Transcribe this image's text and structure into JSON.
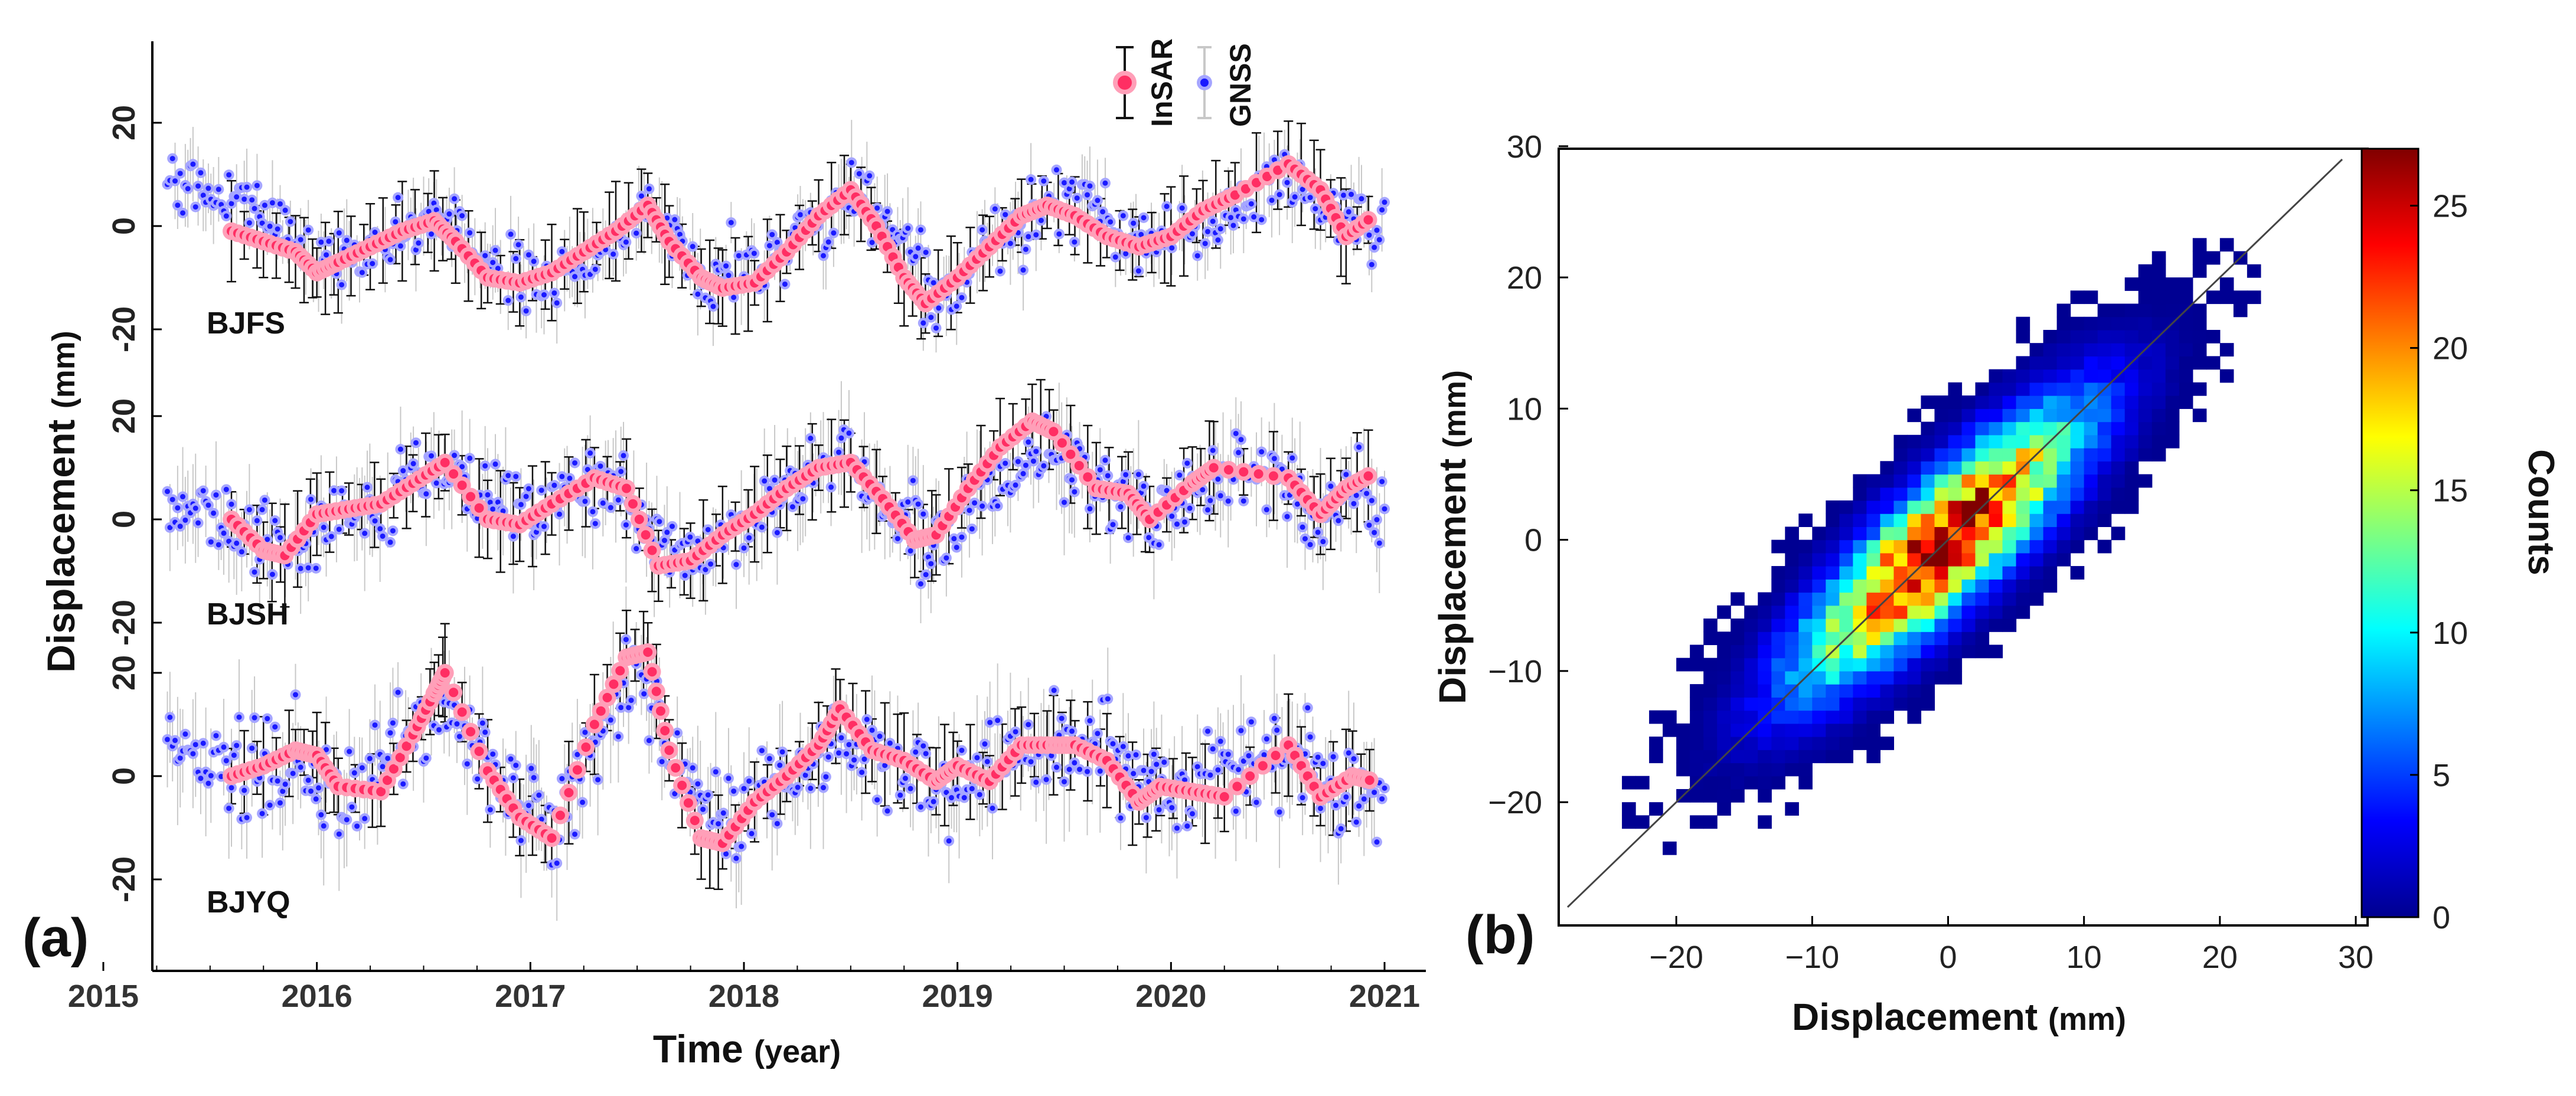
{
  "colors": {
    "insar": "#ff2e63",
    "insar_halo": "#ff9fb8",
    "gnss": "#1a1aff",
    "gnss_halo": "#a6a6ff",
    "gnss_err": "#c8c8c8",
    "insar_err": "#111111",
    "axis": "#000000",
    "one_to_one": "#444444"
  },
  "chart_data": [
    {
      "panel": "(a)",
      "type": "scatter",
      "xlabel": "Time (year)",
      "xlabel_main": "Time",
      "xlabel_unit": "(year)",
      "ylabel": "Displacement (mm)",
      "ylabel_main": "Displacement",
      "ylabel_unit": "(mm)",
      "xlim": [
        2015.2,
        2021.2
      ],
      "xticks": [
        "2015",
        "2016",
        "2017",
        "2018",
        "2019",
        "2020",
        "2021"
      ],
      "yticks_per_station": [
        "20",
        "0",
        "-20"
      ],
      "ylim_per_station": [
        -27,
        27
      ],
      "legend": {
        "position": "top-right",
        "entries": [
          "InSAR",
          "GNSS"
        ]
      },
      "stations": [
        {
          "name": "BJFS",
          "insar_x": [
            2015.6,
            2015.75,
            2015.9,
            2016.0,
            2016.1,
            2016.25,
            2016.4,
            2016.55,
            2016.65,
            2016.8,
            2016.95,
            2017.1,
            2017.25,
            2017.4,
            2017.55,
            2017.65,
            2017.8,
            2017.9,
            2018.05,
            2018.2,
            2018.35,
            2018.5,
            2018.62,
            2018.75,
            2018.85,
            2019.0,
            2019.15,
            2019.3,
            2019.42,
            2019.55,
            2019.7,
            2019.85,
            2020.0,
            2020.15,
            2020.3,
            2020.55,
            2020.7,
            2020.82,
            2020.95
          ],
          "insar_y": [
            -1,
            -3,
            -5,
            -9,
            -7,
            -4,
            -1,
            1,
            -3,
            -10,
            -11,
            -9,
            -5,
            -1,
            4,
            -3,
            -10,
            -12,
            -11,
            -5,
            2,
            7,
            0,
            -10,
            -15,
            -10,
            -4,
            2,
            4,
            2,
            -2,
            -4,
            -2,
            3,
            6,
            12,
            7,
            -2,
            2
          ],
          "gnss_trend_x": [
            2015.3,
            2015.55,
            2015.8,
            2016.0,
            2016.2,
            2016.45,
            2016.6,
            2016.85,
            2017.1,
            2017.35,
            2017.55,
            2017.75,
            2017.95,
            2018.2,
            2018.45,
            2018.55,
            2018.75,
            2018.9,
            2019.1,
            2019.35,
            2019.6,
            2019.85,
            2020.1,
            2020.35,
            2020.55,
            2020.75,
            2021.0
          ],
          "gnss_trend_y": [
            9,
            8,
            1,
            -8,
            -6,
            -1,
            1,
            -9,
            -10,
            -4,
            3,
            -6,
            -11,
            -4,
            4,
            8,
            -2,
            -13,
            -6,
            3,
            5,
            -4,
            0,
            4,
            10,
            2,
            0
          ],
          "gnss_spread": 5,
          "gnss_err": 6
        },
        {
          "name": "BJSH",
          "insar_x": [
            2015.6,
            2015.75,
            2015.85,
            2016.0,
            2016.15,
            2016.3,
            2016.45,
            2016.6,
            2016.8,
            2016.95,
            2017.1,
            2017.3,
            2017.45,
            2017.6,
            2017.75,
            2017.9,
            2018.05,
            2018.2,
            2018.35,
            2018.5,
            2018.65,
            2018.8,
            2018.9,
            2019.05,
            2019.2,
            2019.35,
            2019.45,
            2019.65,
            2019.8,
            2019.9,
            2020.1,
            2020.2,
            2020.55,
            2020.7,
            2020.82,
            2020.95
          ],
          "insar_x_note": "",
          "insar_y": [
            0,
            -6,
            -7,
            1,
            2,
            3,
            7,
            11,
            0,
            -1,
            3,
            8,
            6,
            -9,
            -8,
            -3,
            1,
            6,
            10,
            11,
            4,
            -4,
            -3,
            6,
            14,
            19,
            17,
            6,
            5,
            0,
            7,
            10,
            8,
            1,
            6,
            9
          ],
          "gnss_trend_x": [
            2015.3,
            2015.6,
            2015.85,
            2016.1,
            2016.35,
            2016.6,
            2016.85,
            2017.1,
            2017.35,
            2017.6,
            2017.8,
            2018.05,
            2018.3,
            2018.5,
            2018.7,
            2018.9,
            2019.15,
            2019.4,
            2019.65,
            2019.9,
            2020.15,
            2020.4,
            2020.65,
            2020.85,
            2021.0
          ],
          "gnss_trend_y": [
            3,
            0,
            -5,
            0,
            4,
            10,
            1,
            1,
            8,
            -6,
            -7,
            2,
            9,
            10,
            2,
            -4,
            5,
            13,
            6,
            1,
            6,
            12,
            1,
            6,
            3
          ],
          "gnss_spread": 6,
          "gnss_err": 8
        },
        {
          "name": "BJYQ",
          "insar_x": [
            2015.6,
            2015.75,
            2015.9,
            2016.0,
            2016.1,
            2016.3,
            2016.45,
            2016.55,
            2016.6,
            2016.8,
            2016.95,
            2017.1,
            2017.3,
            2017.45,
            2017.55,
            2017.65,
            2017.8,
            2017.9,
            2018.05,
            2018.2,
            2018.35,
            2018.45,
            2018.6,
            2018.75,
            2018.9,
            2019.0,
            2019.15,
            2019.3,
            2019.45,
            2019.55,
            2019.7,
            2019.85,
            2019.95,
            2020.1,
            2020.25,
            2020.55,
            2020.7,
            2020.85,
            2020.95
          ],
          "insar_y": [
            0,
            2,
            5,
            4,
            -2,
            -3,
            8,
            16,
            20,
            1,
            -8,
            -12,
            10,
            23,
            24,
            5,
            -12,
            -13,
            -5,
            0,
            6,
            13,
            5,
            3,
            -1,
            2,
            -1,
            6,
            6,
            6,
            3,
            -5,
            -2,
            -3,
            -4,
            6,
            -4,
            0,
            -1
          ],
          "gnss_trend_x": [
            2015.3,
            2015.6,
            2015.9,
            2016.15,
            2016.4,
            2016.6,
            2016.85,
            2017.1,
            2017.3,
            2017.5,
            2017.7,
            2017.9,
            2018.15,
            2018.45,
            2018.65,
            2018.9,
            2019.15,
            2019.4,
            2019.65,
            2019.9,
            2020.15,
            2020.4,
            2020.6,
            2020.8,
            2021.0
          ],
          "gnss_trend_y": [
            7,
            3,
            1,
            -4,
            6,
            14,
            -2,
            -10,
            5,
            20,
            3,
            -8,
            -3,
            8,
            4,
            -4,
            2,
            5,
            6,
            -3,
            0,
            6,
            2,
            -3,
            -4
          ],
          "gnss_spread": 7,
          "gnss_err": 9
        }
      ]
    },
    {
      "panel": "(b)",
      "type": "heatmap",
      "xlabel": "Displacement (mm)",
      "xlabel_main": "Displacement",
      "xlabel_unit": "(mm)",
      "ylabel": "Displacement (mm)",
      "ylabel_main": "Displacement",
      "ylabel_unit": "(mm)",
      "xlim": [
        -30,
        30
      ],
      "ylim": [
        -30,
        30
      ],
      "xticks": [
        "-20",
        "-10",
        "0",
        "10",
        "20",
        "30"
      ],
      "yticks": [
        "30",
        "20",
        "10",
        "0",
        "-10",
        "-20"
      ],
      "one_to_one_line": true,
      "bin_size_mm": 1,
      "distribution": {
        "center": [
          -1,
          -1
        ],
        "sigma_major": 9,
        "sigma_minor": 2.6,
        "peak_count": 27
      },
      "colorbar": {
        "label": "Counts",
        "range": [
          0,
          27
        ],
        "ticks": [
          "0",
          "5",
          "10",
          "15",
          "20",
          "25"
        ],
        "colormap": "jet"
      }
    }
  ]
}
